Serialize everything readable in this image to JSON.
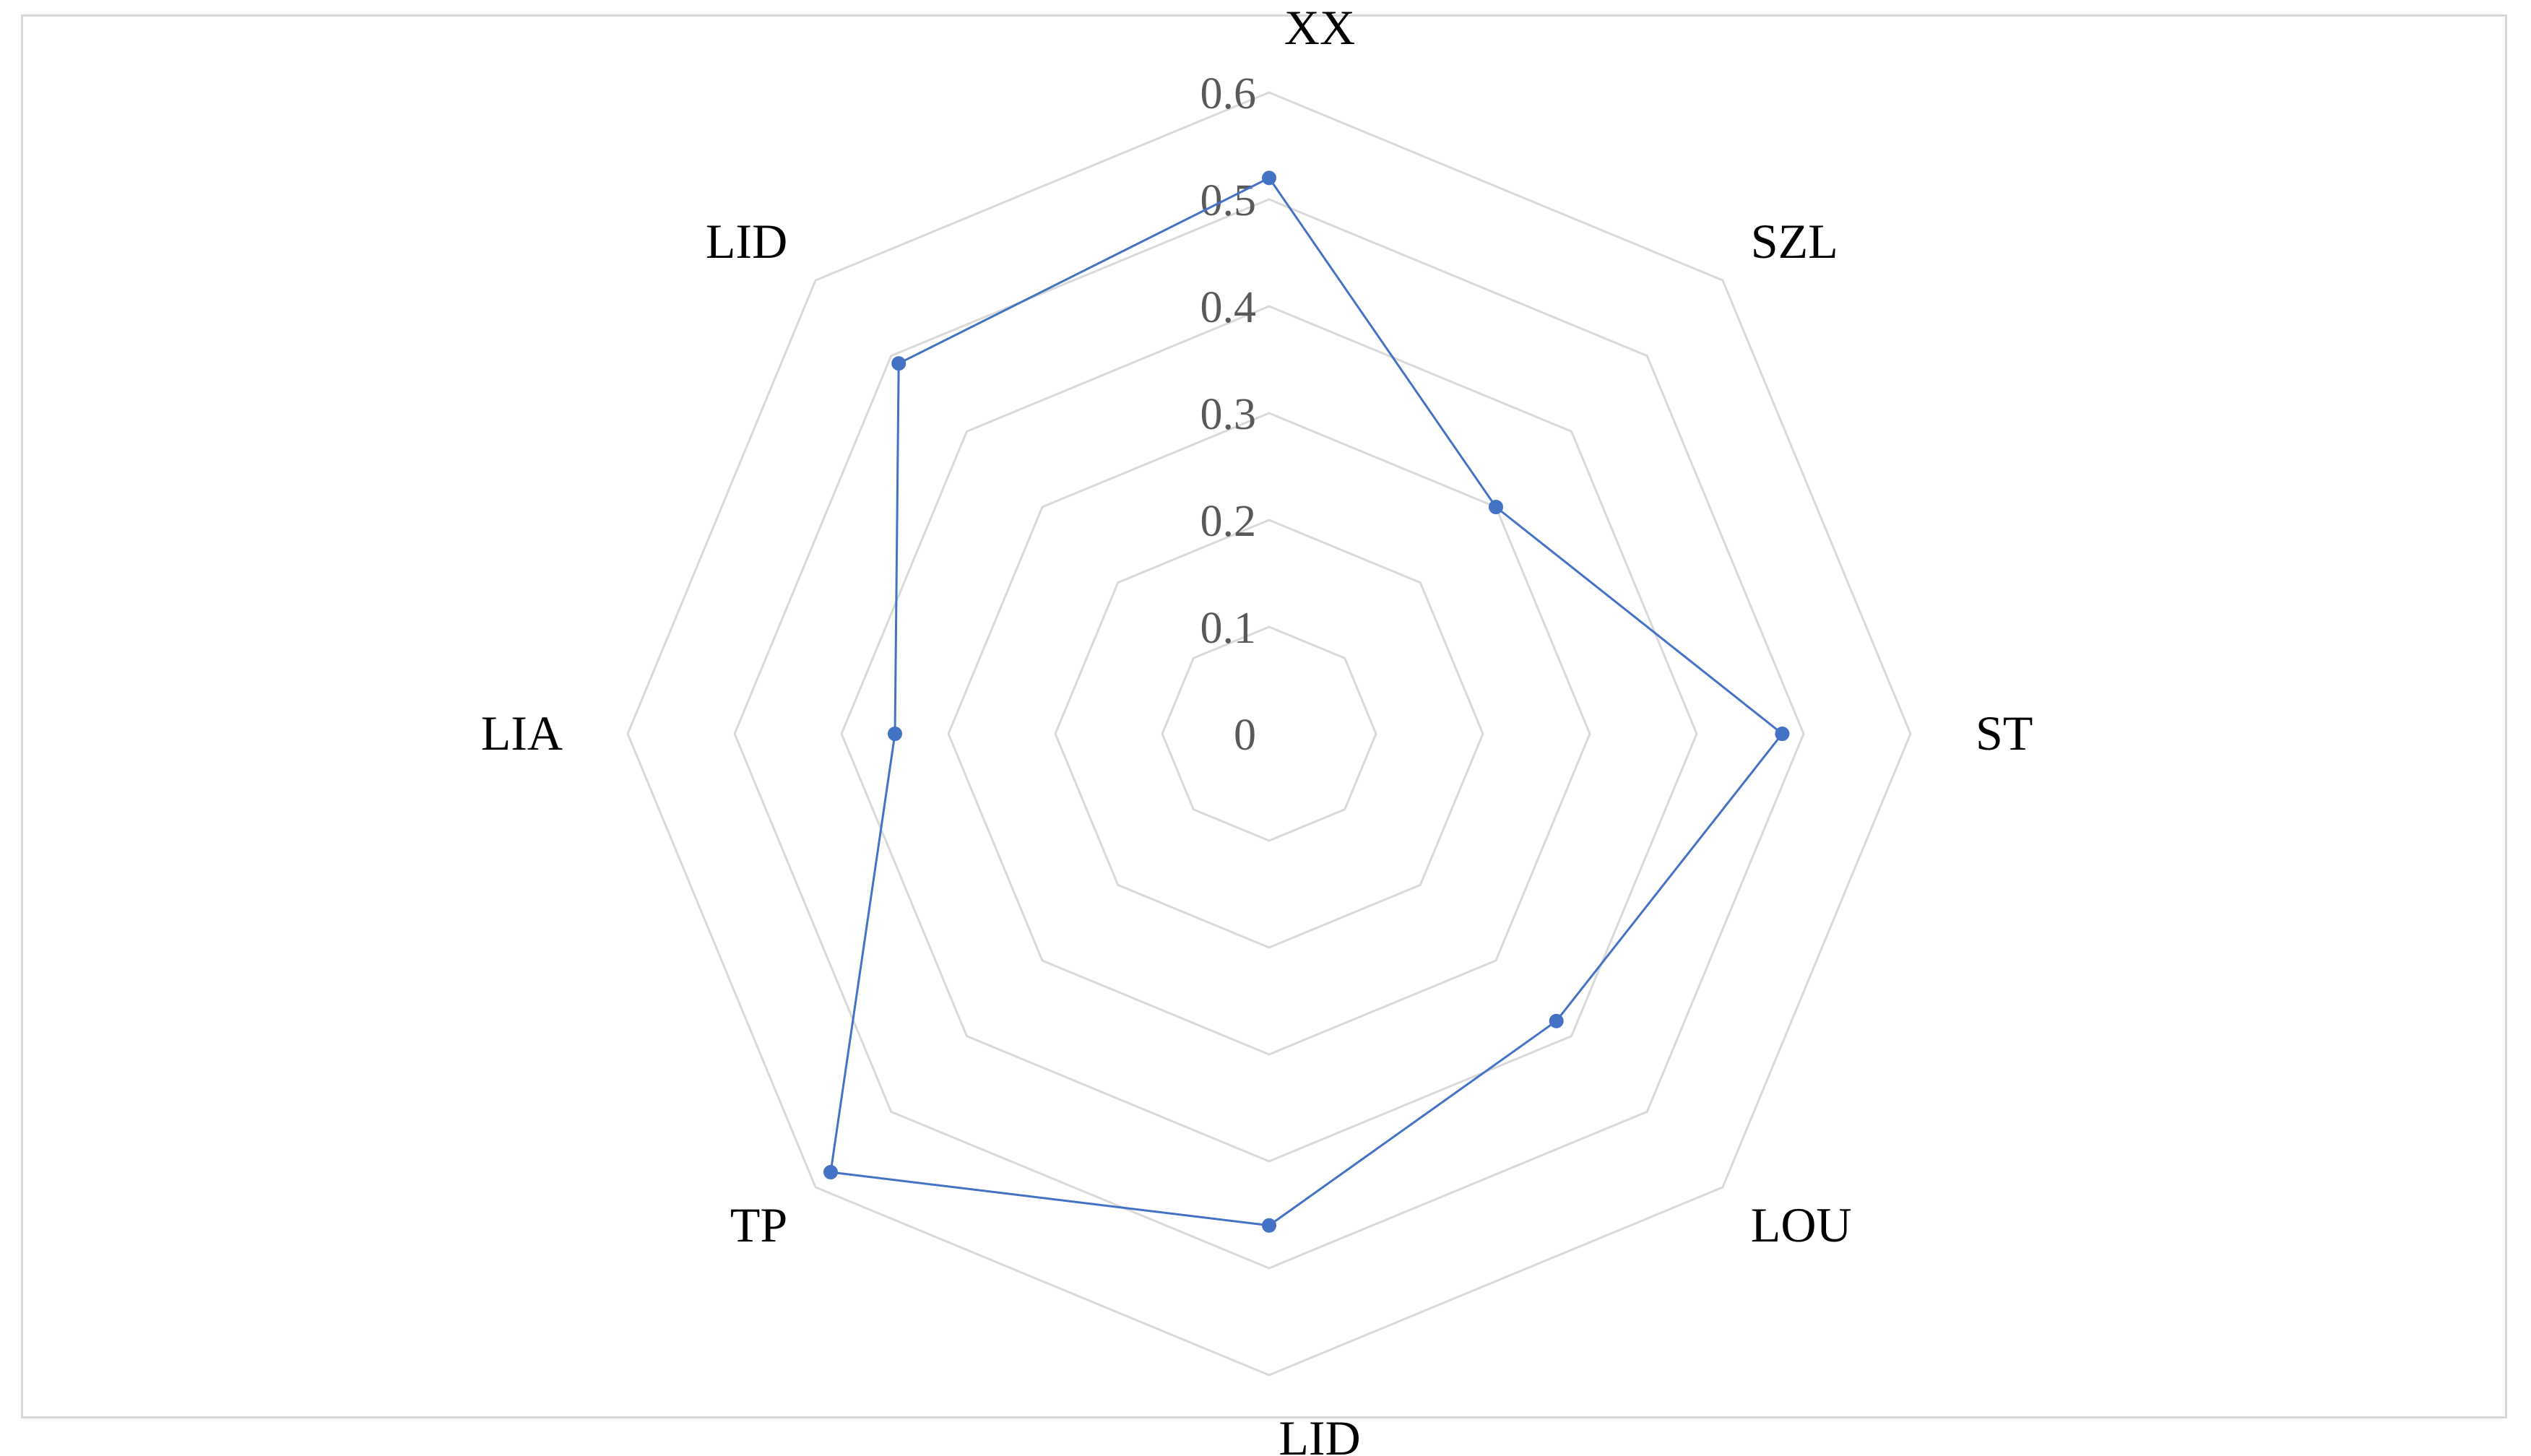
{
  "chart_data": {
    "type": "radar",
    "categories": [
      "XX",
      "SZL",
      "ST",
      "LOU",
      "LID",
      "TP",
      "LIA",
      "LID"
    ],
    "series": [
      {
        "values": [
          0.52,
          0.3,
          0.48,
          0.38,
          0.46,
          0.58,
          0.35,
          0.49
        ]
      }
    ],
    "radial_axis": {
      "range": [
        0,
        0.6
      ],
      "ticks": [
        "0",
        "0.1",
        "0.2",
        "0.3",
        "0.4",
        "0.5",
        "0.6"
      ]
    },
    "grid": true,
    "legend": "none"
  },
  "colors": {
    "series": "#4472c4",
    "grid": "#d9d9d9",
    "tick_text": "#595959",
    "category_text": "#000000"
  }
}
